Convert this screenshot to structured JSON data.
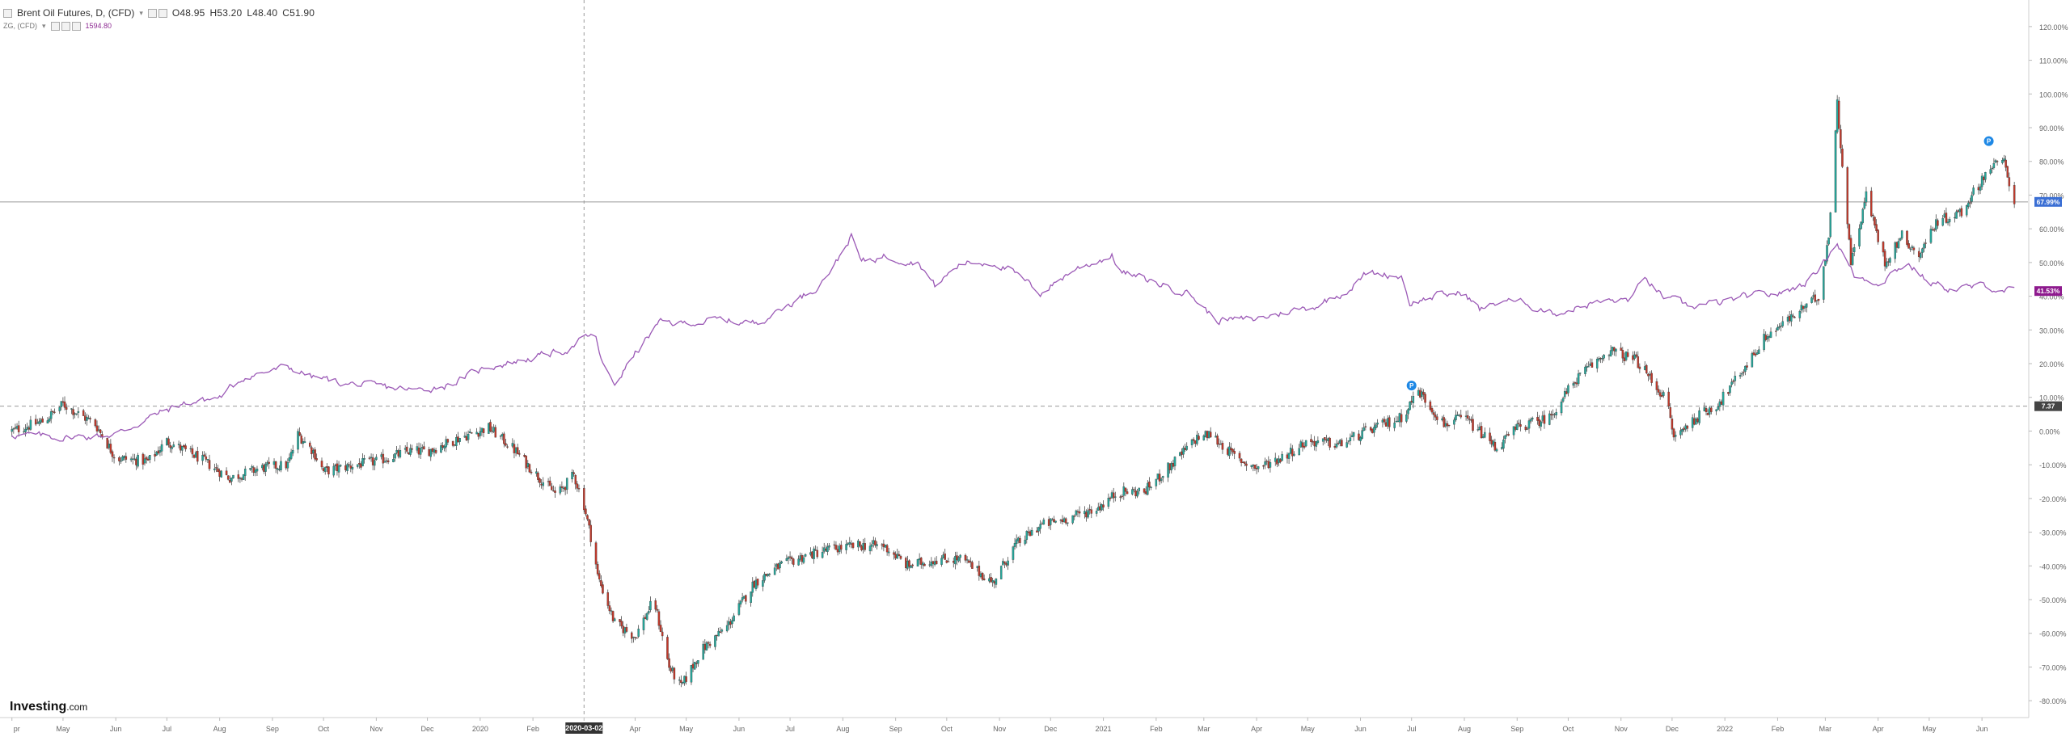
{
  "legend": {
    "main_title": "Brent Oil Futures, D, (CFD)",
    "main_dropdown": "▾",
    "open": "O48.95",
    "high": "H53.20",
    "low": "L48.40",
    "close": "C51.90",
    "compare_title": "ZG, (CFD)",
    "compare_dropdown": "▾",
    "compare_value": "1594.80"
  },
  "logo": {
    "text": "Investing",
    "suffix": ".com"
  },
  "colors": {
    "up": "#26a69a",
    "down": "#c0392b",
    "compare_line": "#9b59b6",
    "crosshair_badge": "#3b6fd4",
    "compare_badge": "#8e1a8e",
    "zero_badge": "#444444",
    "event_marker": "#1e88e5"
  },
  "chart_data": {
    "type": "line",
    "title": "Brent Oil Futures, D, (CFD)",
    "xlabel": "",
    "ylabel": "",
    "x_tick_labels": [
      "pr",
      "May",
      "Jun",
      "Jul",
      "Aug",
      "Sep",
      "Oct",
      "Nov",
      "Dec",
      "2020",
      "Feb",
      "2020-03-02",
      "Apr",
      "May",
      "Jun",
      "Jul",
      "Aug",
      "Sep",
      "Oct",
      "Nov",
      "Dec",
      "2021",
      "Feb",
      "Mar",
      "Apr",
      "May",
      "Jun",
      "Jul",
      "Aug",
      "Sep",
      "Oct",
      "Nov",
      "Dec",
      "2022",
      "Feb",
      "Mar",
      "Apr",
      "May",
      "Jun"
    ],
    "x_tick_dates": [
      "2019-04-01",
      "2019-05-01",
      "2019-06-01",
      "2019-07-01",
      "2019-08-01",
      "2019-09-01",
      "2019-10-01",
      "2019-11-01",
      "2019-12-01",
      "2020-01-01",
      "2020-02-01",
      "2020-03-02",
      "2020-04-01",
      "2020-05-01",
      "2020-06-01",
      "2020-07-01",
      "2020-08-01",
      "2020-09-01",
      "2020-10-01",
      "2020-11-01",
      "2020-12-01",
      "2021-01-01",
      "2021-02-01",
      "2021-03-01",
      "2021-04-01",
      "2021-05-01",
      "2021-06-01",
      "2021-07-01",
      "2021-08-01",
      "2021-09-01",
      "2021-10-01",
      "2021-11-01",
      "2021-12-01",
      "2022-01-01",
      "2022-02-01",
      "2022-03-01",
      "2022-04-01",
      "2022-05-01",
      "2022-06-01"
    ],
    "highlighted_x_label": "2020-03-02",
    "y_tick_values": [
      120,
      110,
      100,
      90,
      80,
      70,
      60,
      50,
      40,
      30,
      20,
      10,
      0,
      -10,
      -20,
      -30,
      -40,
      -50,
      -60,
      -70,
      -80
    ],
    "y_tick_labels": [
      "120.00%",
      "110.00%",
      "100.00%",
      "90.00%",
      "80.00%",
      "70.00%",
      "60.00%",
      "50.00%",
      "40.00%",
      "30.00%",
      "20.00%",
      "10.00%",
      "0.00%",
      "-10.00%",
      "-20.00%",
      "-30.00%",
      "-40.00%",
      "-50.00%",
      "-60.00%",
      "-70.00%",
      "-80.00%"
    ],
    "ylim": [
      -85,
      125
    ],
    "y_scale": "percent change",
    "grid": false,
    "crosshair": {
      "x": "2020-03-02",
      "y": 67.99
    },
    "badges": [
      {
        "label": "67.99%",
        "y": 67.99,
        "role": "crosshair"
      },
      {
        "label": "41.53%",
        "y": 41.53,
        "role": "compare"
      },
      {
        "label": "7.37",
        "y": 7.37,
        "role": "zero"
      }
    ],
    "reference_lines": [
      {
        "y": 7.37,
        "style": "dashed"
      }
    ],
    "event_markers": [
      {
        "date": "2021-07-01",
        "y": 13.5,
        "label": "P"
      },
      {
        "date": "2022-06-05",
        "y": 86,
        "label": "P"
      }
    ],
    "series": [
      {
        "name": "Brent Oil Futures, D, (CFD)",
        "type": "candlestick",
        "color": "#26a69a",
        "anchors": [
          [
            "2019-04-01",
            0
          ],
          [
            "2019-04-20",
            3
          ],
          [
            "2019-05-01",
            8
          ],
          [
            "2019-05-20",
            2
          ],
          [
            "2019-06-01",
            -8
          ],
          [
            "2019-06-20",
            -9
          ],
          [
            "2019-07-01",
            -3
          ],
          [
            "2019-07-20",
            -8
          ],
          [
            "2019-08-07",
            -14
          ],
          [
            "2019-08-25",
            -11
          ],
          [
            "2019-09-10",
            -10
          ],
          [
            "2019-09-16",
            -1
          ],
          [
            "2019-09-25",
            -6
          ],
          [
            "2019-10-01",
            -12
          ],
          [
            "2019-10-20",
            -10
          ],
          [
            "2019-11-01",
            -9
          ],
          [
            "2019-11-20",
            -6
          ],
          [
            "2019-12-01",
            -6
          ],
          [
            "2019-12-20",
            -2
          ],
          [
            "2020-01-06",
            1
          ],
          [
            "2020-01-20",
            -5
          ],
          [
            "2020-02-05",
            -14
          ],
          [
            "2020-02-15",
            -19
          ],
          [
            "2020-02-25",
            -13
          ],
          [
            "2020-03-02",
            -22
          ],
          [
            "2020-03-08",
            -36
          ],
          [
            "2020-03-10",
            -43
          ],
          [
            "2020-03-20",
            -57
          ],
          [
            "2020-04-01",
            -61
          ],
          [
            "2020-04-12",
            -50
          ],
          [
            "2020-04-21",
            -70
          ],
          [
            "2020-04-28",
            -76
          ],
          [
            "2020-05-10",
            -65
          ],
          [
            "2020-05-25",
            -58
          ],
          [
            "2020-06-10",
            -45
          ],
          [
            "2020-06-25",
            -40
          ],
          [
            "2020-07-10",
            -37
          ],
          [
            "2020-07-25",
            -35
          ],
          [
            "2020-08-10",
            -34
          ],
          [
            "2020-08-25",
            -34
          ],
          [
            "2020-09-08",
            -40
          ],
          [
            "2020-09-25",
            -38
          ],
          [
            "2020-10-10",
            -38
          ],
          [
            "2020-10-28",
            -45
          ],
          [
            "2020-11-10",
            -34
          ],
          [
            "2020-11-25",
            -28
          ],
          [
            "2020-12-10",
            -26
          ],
          [
            "2020-12-28",
            -23
          ],
          [
            "2021-01-10",
            -18
          ],
          [
            "2021-01-25",
            -18
          ],
          [
            "2021-02-10",
            -10
          ],
          [
            "2021-02-25",
            -2
          ],
          [
            "2021-03-05",
            -1
          ],
          [
            "2021-03-20",
            -8
          ],
          [
            "2021-04-01",
            -11
          ],
          [
            "2021-04-15",
            -8
          ],
          [
            "2021-05-01",
            -3
          ],
          [
            "2021-05-20",
            -4
          ],
          [
            "2021-06-05",
            0
          ],
          [
            "2021-06-25",
            4
          ],
          [
            "2021-07-05",
            12
          ],
          [
            "2021-07-20",
            2
          ],
          [
            "2021-08-01",
            4
          ],
          [
            "2021-08-20",
            -5
          ],
          [
            "2021-09-01",
            1
          ],
          [
            "2021-09-20",
            4
          ],
          [
            "2021-10-05",
            15
          ],
          [
            "2021-10-25",
            24
          ],
          [
            "2021-11-10",
            21
          ],
          [
            "2021-11-28",
            9
          ],
          [
            "2021-12-02",
            -2
          ],
          [
            "2021-12-15",
            4
          ],
          [
            "2021-12-28",
            8
          ],
          [
            "2022-01-10",
            17
          ],
          [
            "2022-01-25",
            28
          ],
          [
            "2022-02-10",
            34
          ],
          [
            "2022-02-25",
            40
          ],
          [
            "2022-03-03",
            58
          ],
          [
            "2022-03-08",
            97
          ],
          [
            "2022-03-16",
            50
          ],
          [
            "2022-03-25",
            70
          ],
          [
            "2022-04-05",
            50
          ],
          [
            "2022-04-15",
            58
          ],
          [
            "2022-04-25",
            52
          ],
          [
            "2022-05-05",
            62
          ],
          [
            "2022-05-20",
            65
          ],
          [
            "2022-06-05",
            78
          ],
          [
            "2022-06-14",
            80
          ],
          [
            "2022-06-20",
            67.99
          ]
        ]
      },
      {
        "name": "ZG, (CFD)",
        "type": "line",
        "color": "#9b59b6",
        "anchors": [
          [
            "2019-04-01",
            -1
          ],
          [
            "2019-05-01",
            -2
          ],
          [
            "2019-06-01",
            -1
          ],
          [
            "2019-06-25",
            5
          ],
          [
            "2019-07-10",
            8
          ],
          [
            "2019-08-01",
            10
          ],
          [
            "2019-08-15",
            16
          ],
          [
            "2019-09-10",
            19
          ],
          [
            "2019-09-25",
            16
          ],
          [
            "2019-10-15",
            14
          ],
          [
            "2019-11-05",
            13
          ],
          [
            "2019-11-25",
            12
          ],
          [
            "2019-12-15",
            14
          ],
          [
            "2020-01-05",
            19
          ],
          [
            "2020-01-25",
            21
          ],
          [
            "2020-02-20",
            24
          ],
          [
            "2020-03-01",
            27
          ],
          [
            "2020-03-08",
            29
          ],
          [
            "2020-03-14",
            18
          ],
          [
            "2020-03-20",
            14
          ],
          [
            "2020-04-01",
            23
          ],
          [
            "2020-04-15",
            32
          ],
          [
            "2020-05-01",
            32
          ],
          [
            "2020-05-20",
            33
          ],
          [
            "2020-06-10",
            32
          ],
          [
            "2020-06-25",
            36
          ],
          [
            "2020-07-15",
            42
          ],
          [
            "2020-07-28",
            50
          ],
          [
            "2020-08-06",
            58
          ],
          [
            "2020-08-12",
            50
          ],
          [
            "2020-08-25",
            52
          ],
          [
            "2020-09-15",
            50
          ],
          [
            "2020-09-24",
            43
          ],
          [
            "2020-10-10",
            50
          ],
          [
            "2020-10-30",
            50
          ],
          [
            "2020-11-09",
            47
          ],
          [
            "2020-11-25",
            41
          ],
          [
            "2020-12-15",
            48
          ],
          [
            "2021-01-06",
            52
          ],
          [
            "2021-01-12",
            47
          ],
          [
            "2021-02-01",
            44
          ],
          [
            "2021-02-20",
            41
          ],
          [
            "2021-03-08",
            33
          ],
          [
            "2021-03-30",
            33
          ],
          [
            "2021-04-15",
            35
          ],
          [
            "2021-05-05",
            37
          ],
          [
            "2021-05-25",
            42
          ],
          [
            "2021-06-05",
            47
          ],
          [
            "2021-06-25",
            46
          ],
          [
            "2021-06-30",
            38
          ],
          [
            "2021-07-15",
            40
          ],
          [
            "2021-08-01",
            41
          ],
          [
            "2021-08-10",
            36
          ],
          [
            "2021-08-25",
            39
          ],
          [
            "2021-09-10",
            37
          ],
          [
            "2021-09-25",
            35
          ],
          [
            "2021-10-15",
            38
          ],
          [
            "2021-11-05",
            39
          ],
          [
            "2021-11-16",
            45
          ],
          [
            "2021-11-25",
            40
          ],
          [
            "2021-12-10",
            37
          ],
          [
            "2021-12-30",
            38
          ],
          [
            "2022-01-15",
            40
          ],
          [
            "2022-02-05",
            41
          ],
          [
            "2022-02-20",
            45
          ],
          [
            "2022-03-08",
            56
          ],
          [
            "2022-03-18",
            46
          ],
          [
            "2022-04-01",
            44
          ],
          [
            "2022-04-18",
            50
          ],
          [
            "2022-05-01",
            44
          ],
          [
            "2022-05-15",
            42
          ],
          [
            "2022-06-01",
            43
          ],
          [
            "2022-06-20",
            41.53
          ]
        ]
      }
    ]
  }
}
